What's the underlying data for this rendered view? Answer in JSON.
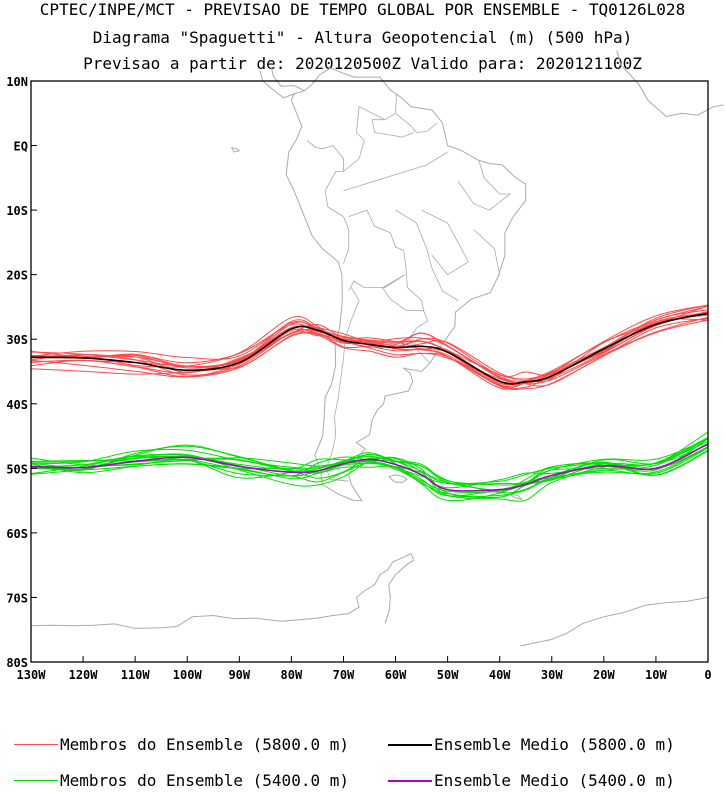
{
  "header": {
    "line1": "CPTEC/INPE/MCT - PREVISAO DE TEMPO GLOBAL POR ENSEMBLE - TQ0126L028",
    "line2": "Diagrama \"Spaguetti\" - Altura Geopotencial (m) (500 hPa)",
    "line3": "Previsao a partir de: 2020120500Z  Valido para: 2020121100Z"
  },
  "map": {
    "lat_range": [
      -80,
      10
    ],
    "lon_range": [
      -130,
      0
    ],
    "lat_labels": [
      {
        "lat": 10,
        "text": "10N"
      },
      {
        "lat": 0,
        "text": "EQ"
      },
      {
        "lat": -10,
        "text": "10S"
      },
      {
        "lat": -20,
        "text": "20S"
      },
      {
        "lat": -30,
        "text": "30S"
      },
      {
        "lat": -40,
        "text": "40S"
      },
      {
        "lat": -50,
        "text": "50S"
      },
      {
        "lat": -60,
        "text": "60S"
      },
      {
        "lat": -70,
        "text": "70S"
      },
      {
        "lat": -80,
        "text": "80S"
      }
    ],
    "lon_labels": [
      {
        "lon": -130,
        "text": "130W"
      },
      {
        "lon": -120,
        "text": "120W"
      },
      {
        "lon": -110,
        "text": "110W"
      },
      {
        "lon": -100,
        "text": "100W"
      },
      {
        "lon": -90,
        "text": "90W"
      },
      {
        "lon": -80,
        "text": "80W"
      },
      {
        "lon": -70,
        "text": "70W"
      },
      {
        "lon": -60,
        "text": "60W"
      },
      {
        "lon": -50,
        "text": "50W"
      },
      {
        "lon": -40,
        "text": "40W"
      },
      {
        "lon": -30,
        "text": "30W"
      },
      {
        "lon": -20,
        "text": "20W"
      },
      {
        "lon": -10,
        "text": "10W"
      },
      {
        "lon": 0,
        "text": "0"
      }
    ],
    "coast_color": "#aaaaaa"
  },
  "ensemble": {
    "lon": [
      -130,
      -120,
      -110,
      -100,
      -90,
      -80,
      -75,
      -70,
      -65,
      -60,
      -55,
      -50,
      -40,
      -35,
      -30,
      -20,
      -10,
      0
    ],
    "mean_5800": [
      -32.8,
      -32.9,
      -33.6,
      -34.8,
      -33.6,
      -28.4,
      -28.6,
      -30.2,
      -30.8,
      -31.3,
      -31.1,
      -32.0,
      -36.5,
      -36.6,
      -35.7,
      -31.5,
      -27.7,
      -26.0
    ],
    "mean_5400": [
      -49.7,
      -49.9,
      -48.9,
      -48.3,
      -49.7,
      -50.6,
      -50.4,
      -49.3,
      -48.6,
      -49.4,
      -51.0,
      -53.3,
      -53.3,
      -52.5,
      -51.1,
      -49.6,
      -50.0,
      -46.2
    ],
    "members_5800_count": 14,
    "members_5400_count": 14,
    "colors": {
      "member_5800": "#ff4a4a",
      "member_5400": "#00e000",
      "mean_5800": "#000000",
      "mean_5400": "#aa00cc"
    }
  },
  "legend": {
    "members_5800": "Membros do Ensemble (5800.0 m)",
    "mean_5800": "Ensemble Medio (5800.0 m)",
    "members_5400": "Membros do Ensemble (5400.0 m)",
    "mean_5400": "Ensemble Medio (5400.0 m)"
  }
}
